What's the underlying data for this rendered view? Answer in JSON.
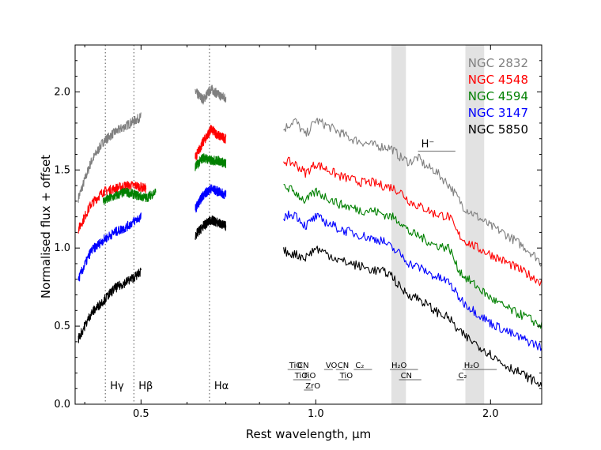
{
  "chart_data": {
    "type": "line",
    "xlabel": "Rest wavelength, μm",
    "ylabel": "Normalised flux + offset",
    "x_scale": "log",
    "xlim": [
      0.385,
      2.45
    ],
    "ylim": [
      0.0,
      2.3
    ],
    "x_ticks": [
      {
        "value": 0.5,
        "label": "0.5"
      },
      {
        "value": 1.0,
        "label": "1.0"
      },
      {
        "value": 2.0,
        "label": "2.0"
      }
    ],
    "y_ticks": [
      {
        "value": 0.0,
        "label": "0.0"
      },
      {
        "value": 0.5,
        "label": "0.5"
      },
      {
        "value": 1.0,
        "label": "1.0"
      },
      {
        "value": 1.5,
        "label": "1.5"
      },
      {
        "value": 2.0,
        "label": "2.0"
      }
    ],
    "telluric_bands": [
      [
        1.35,
        1.43
      ],
      [
        1.81,
        1.95
      ]
    ],
    "line_markers": [
      {
        "name": "gamma",
        "label": "Hγ",
        "x": 0.434
      },
      {
        "name": "beta",
        "label": "Hβ",
        "x": 0.486
      },
      {
        "name": "alpha",
        "label": "Hα",
        "x": 0.656
      }
    ],
    "molecular_bands": [
      {
        "label": "TiO",
        "x_start": 0.9,
        "x_end": 0.93,
        "row": 1
      },
      {
        "label": "CN",
        "x_start": 0.93,
        "x_end": 0.96,
        "row": 1
      },
      {
        "label": "TiO",
        "x_start": 0.92,
        "x_end": 0.95,
        "row": 2
      },
      {
        "label": "TiO",
        "x_start": 0.95,
        "x_end": 0.98,
        "row": 2
      },
      {
        "label": "ZrO",
        "x_start": 0.96,
        "x_end": 0.99,
        "row": 3
      },
      {
        "label": "VO",
        "x_start": 1.04,
        "x_end": 1.07,
        "row": 1
      },
      {
        "label": "CN",
        "x_start": 1.09,
        "x_end": 1.12,
        "row": 1
      },
      {
        "label": "TiO",
        "x_start": 1.1,
        "x_end": 1.14,
        "row": 2
      },
      {
        "label": "C₂",
        "x_start": 1.17,
        "x_end": 1.25,
        "row": 1
      },
      {
        "label": "H₂O",
        "x_start": 1.35,
        "x_end": 1.5,
        "row": 1
      },
      {
        "label": "CN",
        "x_start": 1.4,
        "x_end": 1.52,
        "row": 2
      },
      {
        "label": "H₂O",
        "x_start": 1.8,
        "x_end": 2.05,
        "row": 1
      },
      {
        "label": "C₂",
        "x_start": 1.76,
        "x_end": 1.8,
        "row": 2
      }
    ],
    "annotation": {
      "label": "H⁻",
      "x_start": 1.5,
      "x_end": 1.74,
      "y": 1.62
    },
    "legend_position": "top-right",
    "series": [
      {
        "name": "NGC 2832",
        "color": "#808080",
        "segments": [
          {
            "x": [
              0.39,
              0.41,
              0.43,
              0.45,
              0.47,
              0.49,
              0.5
            ],
            "y": [
              1.32,
              1.55,
              1.68,
              1.74,
              1.78,
              1.82,
              1.84
            ]
          },
          {
            "x": [
              0.62,
              0.64,
              0.66,
              0.68,
              0.7
            ],
            "y": [
              2.0,
              1.95,
              2.02,
              1.98,
              1.96
            ]
          },
          {
            "x": [
              0.88,
              0.92,
              0.96,
              1.0,
              1.05,
              1.1,
              1.15,
              1.2,
              1.25,
              1.3,
              1.35,
              1.4,
              1.45,
              1.5,
              1.55,
              1.6,
              1.7,
              1.75,
              1.8,
              1.9,
              2.0,
              2.1,
              2.2,
              2.3,
              2.4,
              2.45
            ],
            "y": [
              1.76,
              1.82,
              1.72,
              1.82,
              1.78,
              1.74,
              1.7,
              1.68,
              1.66,
              1.65,
              1.64,
              1.58,
              1.55,
              1.58,
              1.52,
              1.5,
              1.4,
              1.33,
              1.26,
              1.2,
              1.14,
              1.1,
              1.05,
              1.0,
              0.94,
              0.9
            ]
          }
        ]
      },
      {
        "name": "NGC 4548",
        "color": "#ff0000",
        "segments": [
          {
            "x": [
              0.39,
              0.41,
              0.43,
              0.45,
              0.47,
              0.49,
              0.51
            ],
            "y": [
              1.12,
              1.28,
              1.36,
              1.38,
              1.4,
              1.4,
              1.38
            ]
          },
          {
            "x": [
              0.62,
              0.64,
              0.66,
              0.68,
              0.7
            ],
            "y": [
              1.58,
              1.68,
              1.76,
              1.72,
              1.7
            ]
          },
          {
            "x": [
              0.88,
              0.92,
              0.96,
              1.0,
              1.05,
              1.1,
              1.15,
              1.2,
              1.25,
              1.3,
              1.35,
              1.4,
              1.45,
              1.5,
              1.55,
              1.6,
              1.7,
              1.75,
              1.8,
              1.9,
              2.0,
              2.1,
              2.2,
              2.3,
              2.4,
              2.45
            ],
            "y": [
              1.56,
              1.54,
              1.48,
              1.54,
              1.5,
              1.46,
              1.44,
              1.42,
              1.42,
              1.4,
              1.39,
              1.36,
              1.3,
              1.27,
              1.25,
              1.22,
              1.2,
              1.1,
              1.05,
              1.0,
              0.96,
              0.92,
              0.88,
              0.84,
              0.8,
              0.78
            ]
          }
        ]
      },
      {
        "name": "NGC 4594",
        "color": "#008000",
        "segments": [
          {
            "x": [
              0.43,
              0.45,
              0.47,
              0.49,
              0.51,
              0.53
            ],
            "y": [
              1.3,
              1.33,
              1.36,
              1.34,
              1.32,
              1.36
            ]
          },
          {
            "x": [
              0.62,
              0.64,
              0.66,
              0.68,
              0.7
            ],
            "y": [
              1.52,
              1.58,
              1.56,
              1.56,
              1.54
            ]
          },
          {
            "x": [
              0.88,
              0.92,
              0.96,
              1.0,
              1.05,
              1.1,
              1.15,
              1.2,
              1.25,
              1.3,
              1.35,
              1.4,
              1.45,
              1.5,
              1.55,
              1.6,
              1.7,
              1.75,
              1.8,
              1.9,
              2.0,
              2.1,
              2.2,
              2.3,
              2.4,
              2.45
            ],
            "y": [
              1.4,
              1.36,
              1.3,
              1.36,
              1.32,
              1.28,
              1.26,
              1.24,
              1.24,
              1.22,
              1.2,
              1.17,
              1.1,
              1.08,
              1.05,
              1.02,
              1.0,
              0.88,
              0.82,
              0.75,
              0.68,
              0.63,
              0.59,
              0.56,
              0.52,
              0.5
            ]
          }
        ]
      },
      {
        "name": "NGC 3147",
        "color": "#0000ff",
        "segments": [
          {
            "x": [
              0.39,
              0.41,
              0.43,
              0.45,
              0.47,
              0.49,
              0.5
            ],
            "y": [
              0.8,
              0.98,
              1.05,
              1.1,
              1.13,
              1.18,
              1.2
            ]
          },
          {
            "x": [
              0.62,
              0.64,
              0.66,
              0.68,
              0.7
            ],
            "y": [
              1.25,
              1.34,
              1.38,
              1.36,
              1.34
            ]
          },
          {
            "x": [
              0.88,
              0.92,
              0.96,
              1.0,
              1.05,
              1.1,
              1.15,
              1.2,
              1.25,
              1.3,
              1.35,
              1.4,
              1.45,
              1.5,
              1.55,
              1.6,
              1.7,
              1.75,
              1.8,
              1.9,
              2.0,
              2.1,
              2.2,
              2.3,
              2.4,
              2.45
            ],
            "y": [
              1.2,
              1.22,
              1.14,
              1.2,
              1.16,
              1.12,
              1.1,
              1.08,
              1.06,
              1.05,
              1.0,
              0.96,
              0.9,
              0.88,
              0.85,
              0.82,
              0.78,
              0.7,
              0.65,
              0.58,
              0.52,
              0.48,
              0.44,
              0.41,
              0.38,
              0.36
            ]
          }
        ]
      },
      {
        "name": "NGC 5850",
        "color": "#000000",
        "segments": [
          {
            "x": [
              0.39,
              0.41,
              0.43,
              0.45,
              0.47,
              0.49,
              0.5
            ],
            "y": [
              0.42,
              0.58,
              0.66,
              0.74,
              0.78,
              0.82,
              0.85
            ]
          },
          {
            "x": [
              0.62,
              0.64,
              0.66,
              0.68,
              0.7
            ],
            "y": [
              1.08,
              1.14,
              1.18,
              1.16,
              1.14
            ]
          },
          {
            "x": [
              0.88,
              0.92,
              0.96,
              1.0,
              1.05,
              1.1,
              1.15,
              1.2,
              1.25,
              1.3,
              1.35,
              1.4,
              1.45,
              1.5,
              1.55,
              1.6,
              1.7,
              1.75,
              1.8,
              1.9,
              2.0,
              2.1,
              2.2,
              2.3,
              2.4,
              2.45
            ],
            "y": [
              0.98,
              0.96,
              0.94,
              1.0,
              0.96,
              0.92,
              0.9,
              0.88,
              0.86,
              0.85,
              0.83,
              0.74,
              0.7,
              0.68,
              0.64,
              0.6,
              0.55,
              0.48,
              0.44,
              0.38,
              0.32,
              0.26,
              0.22,
              0.18,
              0.14,
              0.12
            ]
          }
        ]
      }
    ]
  }
}
